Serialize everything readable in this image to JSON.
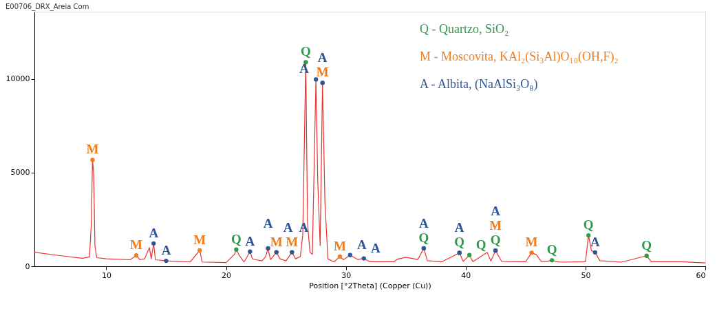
{
  "chart_data": {
    "type": "line",
    "title": "E00706_DRX_Areia Com",
    "xlabel": "Position [°2Theta] (Copper (Cu))",
    "xlim": [
      4,
      60
    ],
    "ylim": [
      0,
      13600
    ],
    "xticks": [
      10,
      20,
      30,
      40,
      50,
      60
    ],
    "yticks": [
      0,
      5000,
      10000
    ],
    "grid": false,
    "marker": "none",
    "line_style": "solid",
    "series": [
      {
        "color": "#e8322f",
        "x": [
          4,
          6,
          8,
          8.6,
          8.75,
          8.85,
          8.95,
          9.05,
          9.2,
          10,
          12,
          12.5,
          12.8,
          13.2,
          13.6,
          13.75,
          13.95,
          14.1,
          15,
          17,
          17.8,
          18,
          20,
          20.7,
          20.85,
          21.1,
          21.5,
          22,
          22.2,
          22.5,
          23,
          23.3,
          23.5,
          23.7,
          24.2,
          24.5,
          25,
          25.5,
          25.8,
          26.2,
          26.4,
          26.65,
          26.8,
          27,
          27.2,
          27.5,
          27.65,
          27.85,
          28.05,
          28.25,
          28.5,
          29,
          29.5,
          29.8,
          30.35,
          31,
          31.5,
          32,
          34,
          34.3,
          35,
          36,
          36.5,
          36.8,
          38,
          39.48,
          39.8,
          40.31,
          40.6,
          41.8,
          42.1,
          42.49,
          43,
          45,
          45.5,
          45.9,
          46.3,
          46.8,
          47.2,
          47.6,
          48,
          50,
          50.25,
          50.5,
          50.8,
          51.2,
          53,
          55.1,
          55.5,
          58,
          60
        ],
        "values": [
          750,
          580,
          430,
          500,
          2260,
          5680,
          4930,
          1100,
          460,
          400,
          350,
          580,
          350,
          400,
          1000,
          400,
          1220,
          350,
          290,
          230,
          850,
          230,
          200,
          640,
          890,
          580,
          230,
          780,
          400,
          350,
          290,
          520,
          960,
          350,
          750,
          400,
          290,
          750,
          400,
          520,
          1680,
          10900,
          2260,
          750,
          640,
          9980,
          4580,
          1100,
          9800,
          3420,
          400,
          230,
          520,
          350,
          600,
          360,
          420,
          240,
          240,
          380,
          480,
          360,
          960,
          300,
          240,
          720,
          260,
          600,
          250,
          740,
          280,
          840,
          260,
          240,
          720,
          620,
          260,
          260,
          320,
          240,
          220,
          240,
          1650,
          840,
          740,
          300,
          220,
          560,
          240,
          240,
          180
        ]
      },
      {
        "name": "Q - Quartzo, SiO₂",
        "type": "scatter",
        "marker": "circle",
        "color": "#2e9a4a",
        "x": [
          20.85,
          26.65,
          36.5,
          39.48,
          40.31,
          42.49,
          47.2,
          50.25,
          55.1
        ],
        "values": [
          890,
          10900,
          960,
          720,
          600,
          840,
          320,
          1650,
          560
        ],
        "value_labels": [
          "Q",
          "Q",
          "Q",
          "Q",
          "Q",
          "Q",
          "Q",
          "Q",
          "Q"
        ]
      },
      {
        "name": "M - Moscovita, KAl₂(Si₃Al)O₁₀(OH,F)₂",
        "type": "scatter",
        "marker": "circle",
        "color": "#f07c1c",
        "x": [
          8.85,
          12.5,
          17.8,
          24.2,
          25.5,
          28.05,
          29.5,
          42.49,
          45.5
        ],
        "values": [
          5680,
          580,
          850,
          750,
          750,
          9800,
          520,
          840,
          720
        ],
        "value_labels": [
          "M",
          "M",
          "M",
          "M",
          "M",
          "M",
          "M",
          "M",
          "M"
        ]
      },
      {
        "name": "A - Albita, (NaAlSi₃O₈)",
        "type": "scatter",
        "marker": "circle",
        "color": "#2f5597",
        "x": [
          13.95,
          15,
          22,
          23.5,
          24.2,
          25.5,
          27.5,
          28.05,
          30.35,
          31.5,
          36.5,
          39.48,
          42.49,
          50.8
        ],
        "values": [
          1220,
          290,
          780,
          960,
          750,
          750,
          9980,
          9800,
          600,
          420,
          960,
          720,
          840,
          740
        ],
        "value_labels": [
          "A",
          "A",
          "A",
          "A",
          "A",
          "A",
          "A",
          "A",
          "A",
          "A",
          "A",
          "A",
          "A",
          "A"
        ]
      }
    ]
  }
}
